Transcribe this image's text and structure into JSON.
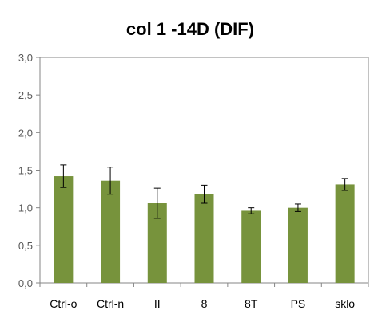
{
  "chart_data": {
    "type": "bar",
    "title": "col 1 -14D (DIF)",
    "xlabel": "",
    "ylabel": "",
    "categories": [
      "Ctrl-o",
      "Ctrl-n",
      "II",
      "8",
      "8T",
      "PS",
      "sklo"
    ],
    "values": [
      1.42,
      1.36,
      1.06,
      1.18,
      0.96,
      1.0,
      1.31
    ],
    "errors": [
      0.15,
      0.18,
      0.2,
      0.12,
      0.04,
      0.05,
      0.08
    ],
    "ylim": [
      0,
      3.0
    ],
    "yticks": [
      "0,0",
      "0,5",
      "1,0",
      "1,5",
      "2,0",
      "2,5",
      "3,0"
    ],
    "ytick_values": [
      0,
      0.5,
      1.0,
      1.5,
      2.0,
      2.5,
      3.0
    ],
    "grid": false,
    "legend": "none",
    "colors": {
      "bar": "#77933c",
      "axis": "#868686",
      "error": "#000000"
    }
  }
}
